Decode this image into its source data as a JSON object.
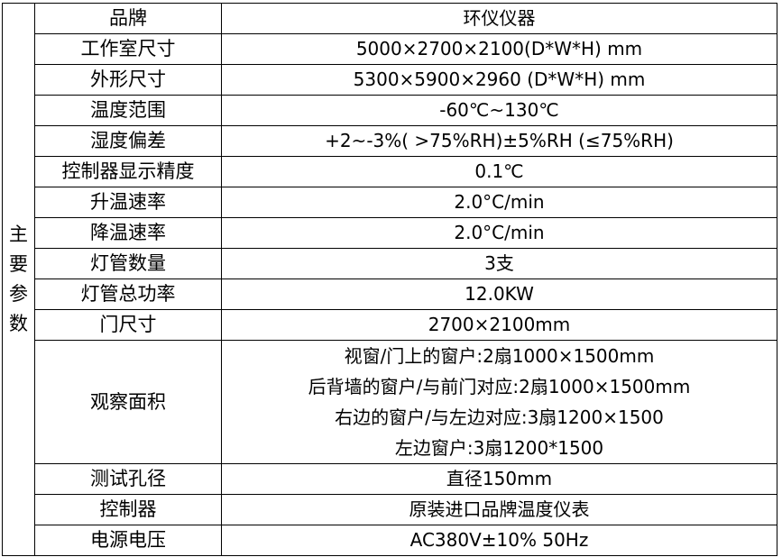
{
  "side_label": [
    "主",
    "要",
    "参",
    "数"
  ],
  "rows": [
    {
      "label": "品牌",
      "value": [
        "环仪仪器"
      ]
    },
    {
      "label": "工作室尺寸",
      "value": [
        "5000×2700×2100(D*W*H) mm"
      ]
    },
    {
      "label": "外形尺寸",
      "value": [
        "5300×5900×2960 (D*W*H) mm"
      ]
    },
    {
      "label": "温度范围",
      "value": [
        "-60℃~130℃"
      ]
    },
    {
      "label": "湿度偏差",
      "value": [
        "+2~-3%( >75%RH)±5%RH (≤75%RH)"
      ]
    },
    {
      "label": "控制器显示精度",
      "value": [
        "0.1℃"
      ]
    },
    {
      "label": "升温速率",
      "value": [
        "2.0°C/min"
      ]
    },
    {
      "label": "降温速率",
      "value": [
        "2.0°C/min"
      ]
    },
    {
      "label": "灯管数量",
      "value": [
        "3支"
      ]
    },
    {
      "label": "灯管总功率",
      "value": [
        "12.0KW"
      ]
    },
    {
      "label": "门尺寸",
      "value": [
        "2700×2100mm"
      ]
    },
    {
      "label": "观察面积",
      "value": [
        "视窗/门上的窗户:2扇1000×1500mm",
        "后背墙的窗户/与前门对应:2扇1000×1500mm",
        "右边的窗户/与左边对应:3扇1200×1500",
        "左边窗户:3扇1200*1500"
      ]
    },
    {
      "label": "测试孔径",
      "value": [
        "直径150mm"
      ]
    },
    {
      "label": "控制器",
      "value": [
        "原装进口品牌温度仪表"
      ]
    },
    {
      "label": "电源电压",
      "value": [
        "AC380V±10% 50Hz"
      ]
    }
  ]
}
